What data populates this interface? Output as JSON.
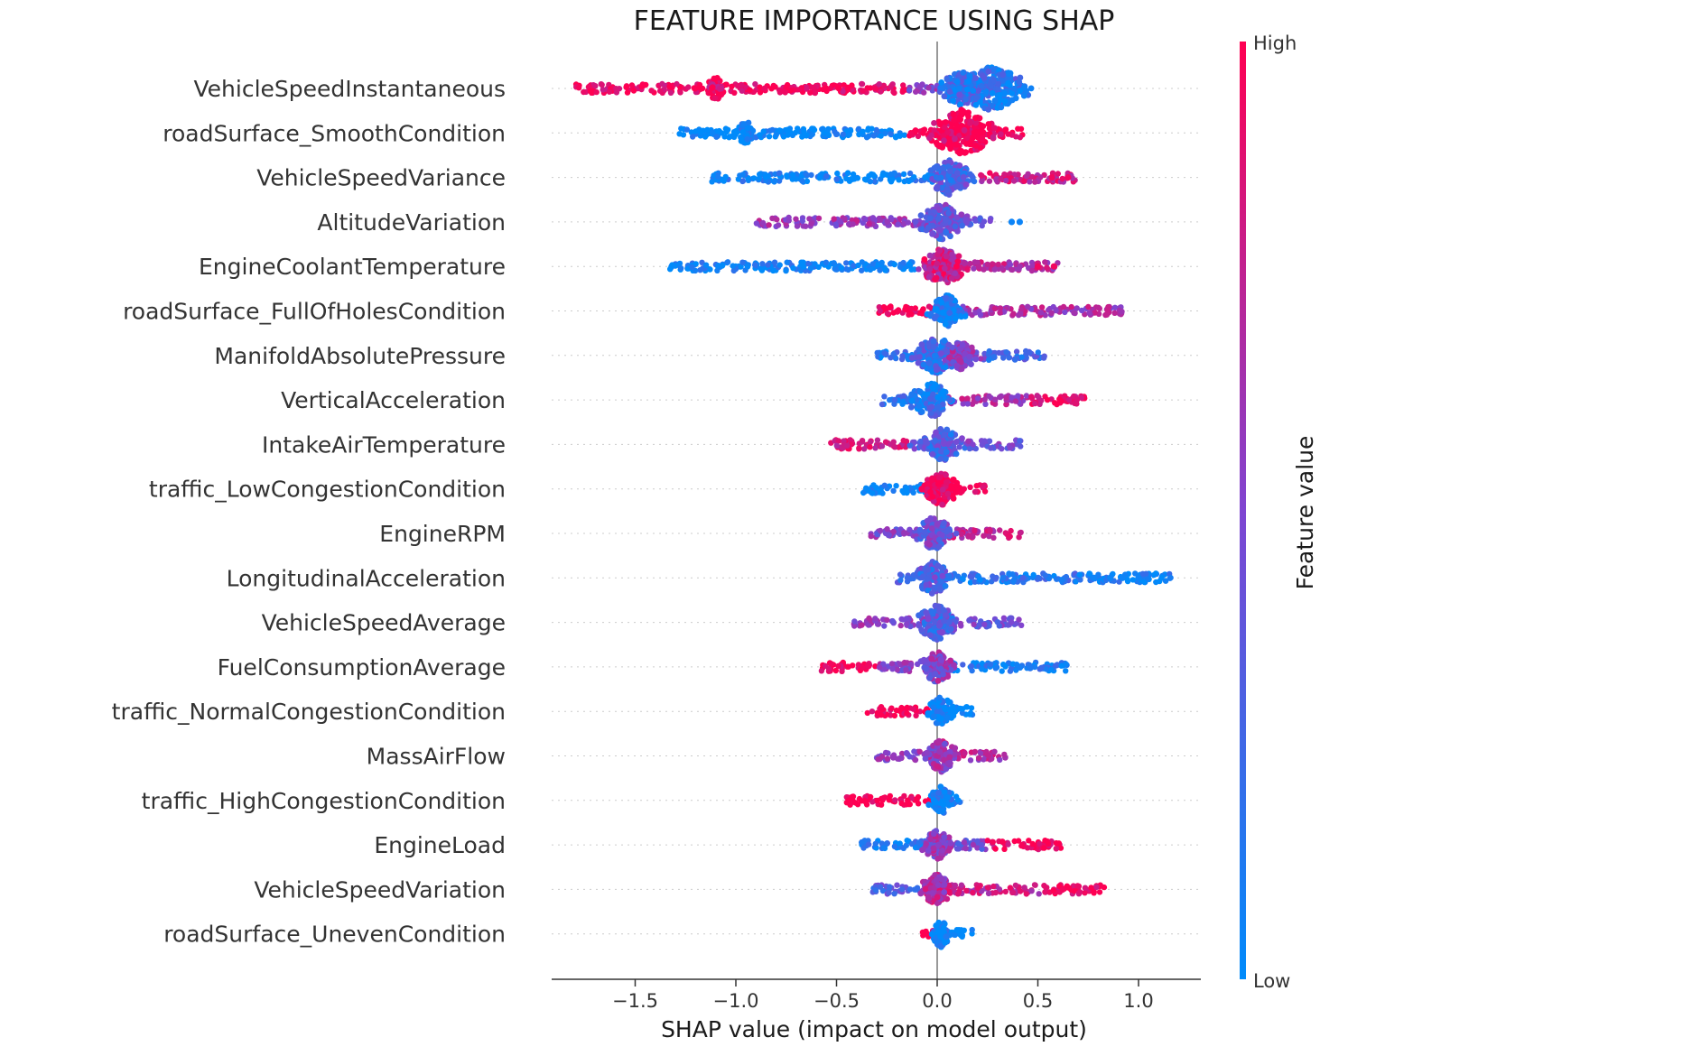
{
  "chart_data": {
    "type": "scatter",
    "subtype": "shap-beeswarm",
    "title": "FEATURE IMPORTANCE USING SHAP",
    "xlabel": "SHAP value (impact on model output)",
    "xlim": [
      -1.92,
      1.3
    ],
    "xticks": [
      {
        "value": -1.5,
        "label": "−1.5"
      },
      {
        "value": -1.0,
        "label": "−1.0"
      },
      {
        "value": -0.5,
        "label": "−0.5"
      },
      {
        "value": 0.0,
        "label": "0.0"
      },
      {
        "value": 0.5,
        "label": "0.5"
      },
      {
        "value": 1.0,
        "label": "1.0"
      }
    ],
    "colorbar": {
      "label": "Feature value",
      "high_label": "High",
      "low_label": "Low",
      "low_color": "#008bfb",
      "high_color": "#ff0052"
    },
    "features": [
      {
        "name": "VehicleSpeedInstantaneous",
        "segments": [
          {
            "from": -1.8,
            "to": -0.15,
            "fv": 0.95
          },
          {
            "from": -0.15,
            "to": 0.0,
            "fv": 0.55
          },
          {
            "from": 0.0,
            "to": 0.42,
            "fv": 0.18
          }
        ],
        "clusters": [
          {
            "at": 0.27,
            "fv": 0.15,
            "mag": 1.6
          },
          {
            "at": 0.12,
            "fv": 0.2,
            "mag": 1.0
          },
          {
            "at": -1.1,
            "fv": 0.9,
            "mag": 0.4
          }
        ]
      },
      {
        "name": "roadSurface_SmoothCondition",
        "segments": [
          {
            "from": -1.28,
            "to": -0.15,
            "fv": 0.0
          },
          {
            "from": -0.15,
            "to": 0.43,
            "fv": 1.0
          }
        ],
        "clusters": [
          {
            "at": 0.12,
            "fv": 1.0,
            "mag": 1.6
          },
          {
            "at": -0.95,
            "fv": 0.0,
            "mag": 0.4
          }
        ]
      },
      {
        "name": "VehicleSpeedVariance",
        "segments": [
          {
            "from": -1.12,
            "to": 0.0,
            "fv": 0.05
          },
          {
            "from": 0.0,
            "to": 0.2,
            "fv": 0.3
          },
          {
            "from": 0.2,
            "to": 0.7,
            "fv": 0.8
          }
        ],
        "clusters": [
          {
            "at": 0.06,
            "fv": 0.3,
            "mag": 1.0
          }
        ],
        "outliers": [
          {
            "at": 0.57,
            "fv": 0.95
          },
          {
            "at": 0.65,
            "fv": 0.95
          }
        ]
      },
      {
        "name": "AltitudeVariation",
        "segments": [
          {
            "from": -0.9,
            "to": -0.05,
            "fv": 0.6
          },
          {
            "from": -0.05,
            "to": 0.27,
            "fv": 0.35
          }
        ],
        "clusters": [
          {
            "at": 0.03,
            "fv": 0.4,
            "mag": 1.1
          }
        ],
        "outliers": [
          {
            "at": 0.37,
            "fv": 0.05
          },
          {
            "at": 0.41,
            "fv": 0.05
          }
        ]
      },
      {
        "name": "EngineCoolantTemperature",
        "segments": [
          {
            "from": -1.33,
            "to": -0.1,
            "fv": 0.05
          },
          {
            "from": -0.1,
            "to": 0.2,
            "fv": 0.75
          },
          {
            "from": 0.2,
            "to": 0.6,
            "fv": 0.7
          }
        ],
        "clusters": [
          {
            "at": 0.03,
            "fv": 0.8,
            "mag": 1.1
          }
        ],
        "outliers": [
          {
            "at": 0.5,
            "fv": 0.95
          },
          {
            "at": 0.58,
            "fv": 0.95
          }
        ]
      },
      {
        "name": "roadSurface_FullOfHolesCondition",
        "segments": [
          {
            "from": -0.3,
            "to": -0.02,
            "fv": 1.0
          },
          {
            "from": -0.02,
            "to": 0.1,
            "fv": 0.05
          },
          {
            "from": 0.1,
            "to": 0.92,
            "fv": 0.65
          }
        ],
        "clusters": [
          {
            "at": 0.05,
            "fv": 0.05,
            "mag": 0.8
          }
        ]
      },
      {
        "name": "ManifoldAbsolutePressure",
        "segments": [
          {
            "from": -0.3,
            "to": 0.05,
            "fv": 0.15
          },
          {
            "from": 0.05,
            "to": 0.25,
            "fv": 0.5
          },
          {
            "from": 0.25,
            "to": 0.55,
            "fv": 0.25
          }
        ],
        "clusters": [
          {
            "at": 0.0,
            "fv": 0.25,
            "mag": 1.1
          },
          {
            "at": 0.12,
            "fv": 0.55,
            "mag": 0.7
          }
        ]
      },
      {
        "name": "VerticalAcceleration",
        "segments": [
          {
            "from": -0.28,
            "to": 0.05,
            "fv": 0.2
          },
          {
            "from": 0.05,
            "to": 0.45,
            "fv": 0.65
          },
          {
            "from": 0.45,
            "to": 0.75,
            "fv": 0.9
          }
        ],
        "clusters": [
          {
            "at": -0.03,
            "fv": 0.15,
            "mag": 1.0
          }
        ]
      },
      {
        "name": "IntakeAirTemperature",
        "segments": [
          {
            "from": -0.55,
            "to": -0.15,
            "fv": 0.85
          },
          {
            "from": -0.15,
            "to": 0.15,
            "fv": 0.35
          },
          {
            "from": 0.15,
            "to": 0.42,
            "fv": 0.45
          }
        ],
        "clusters": [
          {
            "at": 0.03,
            "fv": 0.3,
            "mag": 0.9
          }
        ]
      },
      {
        "name": "traffic_LowCongestionCondition",
        "segments": [
          {
            "from": -0.37,
            "to": 0.0,
            "fv": 0.0
          },
          {
            "from": 0.0,
            "to": 0.24,
            "fv": 1.0
          }
        ],
        "clusters": [
          {
            "at": 0.02,
            "fv": 1.0,
            "mag": 0.9
          }
        ]
      },
      {
        "name": "EngineRPM",
        "segments": [
          {
            "from": -0.35,
            "to": 0.05,
            "fv": 0.5
          },
          {
            "from": 0.05,
            "to": 0.42,
            "fv": 0.75
          }
        ],
        "clusters": [
          {
            "at": -0.02,
            "fv": 0.4,
            "mag": 0.9
          }
        ]
      },
      {
        "name": "LongitudinalAcceleration",
        "segments": [
          {
            "from": -0.2,
            "to": 0.05,
            "fv": 0.3
          },
          {
            "from": 0.05,
            "to": 0.7,
            "fv": 0.15
          },
          {
            "from": 0.7,
            "to": 1.16,
            "fv": 0.05
          }
        ],
        "clusters": [
          {
            "at": -0.02,
            "fv": 0.3,
            "mag": 0.9
          }
        ],
        "outliers": [
          {
            "at": 0.78,
            "fv": 0.05
          },
          {
            "at": 0.86,
            "fv": 0.05
          },
          {
            "at": 0.92,
            "fv": 0.05
          },
          {
            "at": 1.0,
            "fv": 0.05
          }
        ]
      },
      {
        "name": "VehicleSpeedAverage",
        "segments": [
          {
            "from": -0.42,
            "to": 0.0,
            "fv": 0.55
          },
          {
            "from": 0.0,
            "to": 0.42,
            "fv": 0.45
          }
        ],
        "clusters": [
          {
            "at": 0.0,
            "fv": 0.3,
            "mag": 1.0
          }
        ]
      },
      {
        "name": "FuelConsumptionAverage",
        "segments": [
          {
            "from": -0.58,
            "to": -0.3,
            "fv": 0.95
          },
          {
            "from": -0.3,
            "to": 0.05,
            "fv": 0.55
          },
          {
            "from": 0.05,
            "to": 0.66,
            "fv": 0.1
          }
        ],
        "clusters": [
          {
            "at": 0.0,
            "fv": 0.55,
            "mag": 0.8
          }
        ]
      },
      {
        "name": "traffic_NormalCongestionCondition",
        "segments": [
          {
            "from": -0.35,
            "to": 0.0,
            "fv": 1.0
          },
          {
            "from": 0.0,
            "to": 0.18,
            "fv": 0.0
          }
        ],
        "clusters": [
          {
            "at": 0.02,
            "fv": 0.0,
            "mag": 0.7
          }
        ]
      },
      {
        "name": "MassAirFlow",
        "segments": [
          {
            "from": -0.3,
            "to": 0.0,
            "fv": 0.55
          },
          {
            "from": 0.0,
            "to": 0.34,
            "fv": 0.7
          }
        ],
        "clusters": [
          {
            "at": 0.02,
            "fv": 0.6,
            "mag": 0.8
          }
        ]
      },
      {
        "name": "traffic_HighCongestionCondition",
        "segments": [
          {
            "from": -0.45,
            "to": 0.0,
            "fv": 1.0
          },
          {
            "from": 0.0,
            "to": 0.13,
            "fv": 0.0
          }
        ],
        "clusters": [
          {
            "at": 0.02,
            "fv": 0.0,
            "mag": 0.6
          }
        ]
      },
      {
        "name": "EngineLoad",
        "segments": [
          {
            "from": -0.38,
            "to": 0.0,
            "fv": 0.1
          },
          {
            "from": 0.0,
            "to": 0.25,
            "fv": 0.45
          },
          {
            "from": 0.25,
            "to": 0.62,
            "fv": 0.95
          }
        ],
        "clusters": [
          {
            "at": 0.0,
            "fv": 0.55,
            "mag": 0.7
          }
        ]
      },
      {
        "name": "VehicleSpeedVariation",
        "segments": [
          {
            "from": -0.33,
            "to": 0.0,
            "fv": 0.35
          },
          {
            "from": 0.0,
            "to": 0.55,
            "fv": 0.75
          },
          {
            "from": 0.55,
            "to": 0.84,
            "fv": 0.95
          }
        ],
        "clusters": [
          {
            "at": 0.0,
            "fv": 0.7,
            "mag": 0.8
          }
        ]
      },
      {
        "name": "roadSurface_UnevenCondition",
        "segments": [
          {
            "from": -0.08,
            "to": 0.0,
            "fv": 1.0
          },
          {
            "from": 0.0,
            "to": 0.18,
            "fv": 0.0
          }
        ],
        "clusters": [
          {
            "at": 0.02,
            "fv": 0.0,
            "mag": 0.5
          }
        ]
      }
    ]
  }
}
